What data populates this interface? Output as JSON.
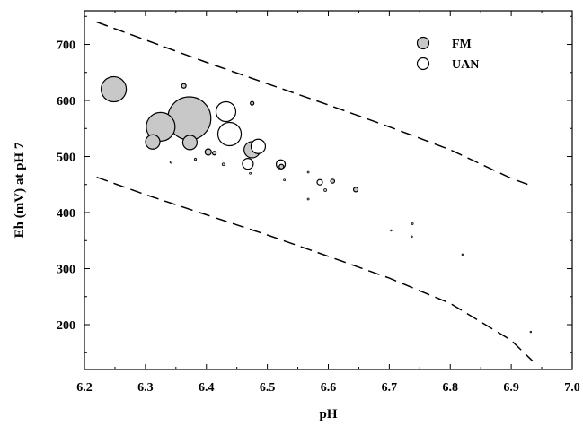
{
  "chart_data": {
    "type": "scatter",
    "title": "",
    "xlabel": "pH",
    "ylabel": "Eh (mV) at pH 7",
    "xlim": [
      6.2,
      7.0
    ],
    "ylim": [
      120,
      760
    ],
    "x_ticks": [
      6.2,
      6.3,
      6.4,
      6.5,
      6.6,
      6.7,
      6.8,
      6.9,
      7.0
    ],
    "x_tick_labels": [
      "6.2",
      "6.3",
      "6.4",
      "6.5",
      "6.6",
      "6.7",
      "6.8",
      "6.9",
      "7.0"
    ],
    "y_ticks": [
      200,
      300,
      400,
      500,
      600,
      700
    ],
    "y_tick_labels": [
      "200",
      "300",
      "400",
      "500",
      "600",
      "700"
    ],
    "grid": false,
    "legend_position": "top-right",
    "colors": {
      "FM_fill": "#c8c8c8",
      "UAN_fill": "#ffffff",
      "stroke": "#000000"
    },
    "series": [
      {
        "name": "FM",
        "marker": "filled-circle",
        "points": [
          {
            "x": 6.248,
            "y": 620,
            "size": 14
          },
          {
            "x": 6.325,
            "y": 553,
            "size": 16
          },
          {
            "x": 6.312,
            "y": 526,
            "size": 8
          },
          {
            "x": 6.372,
            "y": 568,
            "size": 24
          },
          {
            "x": 6.373,
            "y": 525,
            "size": 8
          },
          {
            "x": 6.363,
            "y": 626,
            "size": 2.5
          },
          {
            "x": 6.403,
            "y": 508,
            "size": 3.5
          },
          {
            "x": 6.413,
            "y": 506,
            "size": 2
          },
          {
            "x": 6.475,
            "y": 512,
            "size": 9
          },
          {
            "x": 6.475,
            "y": 595,
            "size": 2
          },
          {
            "x": 6.428,
            "y": 486,
            "size": 1.5
          },
          {
            "x": 6.342,
            "y": 490,
            "size": 1.2
          },
          {
            "x": 6.382,
            "y": 495,
            "size": 1.2
          },
          {
            "x": 6.523,
            "y": 482,
            "size": 2.5
          },
          {
            "x": 6.595,
            "y": 440,
            "size": 1.5
          },
          {
            "x": 6.607,
            "y": 456,
            "size": 2.2
          },
          {
            "x": 6.645,
            "y": 441,
            "size": 2.5
          },
          {
            "x": 6.738,
            "y": 380,
            "size": 1
          }
        ]
      },
      {
        "name": "UAN",
        "marker": "open-circle",
        "points": [
          {
            "x": 6.432,
            "y": 580,
            "size": 11
          },
          {
            "x": 6.438,
            "y": 540,
            "size": 13
          },
          {
            "x": 6.485,
            "y": 518,
            "size": 8
          },
          {
            "x": 6.468,
            "y": 487,
            "size": 6
          },
          {
            "x": 6.522,
            "y": 486,
            "size": 5
          },
          {
            "x": 6.586,
            "y": 454,
            "size": 3
          },
          {
            "x": 6.567,
            "y": 472,
            "size": 1
          },
          {
            "x": 6.567,
            "y": 424,
            "size": 1
          },
          {
            "x": 6.528,
            "y": 458,
            "size": 1
          },
          {
            "x": 6.472,
            "y": 470,
            "size": 1
          },
          {
            "x": 6.703,
            "y": 368,
            "size": 0.8
          },
          {
            "x": 6.737,
            "y": 357,
            "size": 0.8
          },
          {
            "x": 6.82,
            "y": 325,
            "size": 0.8
          },
          {
            "x": 6.932,
            "y": 187,
            "size": 0.8
          }
        ]
      }
    ],
    "bounds": [
      {
        "name": "upper-bound",
        "style": "dashed",
        "points": [
          [
            6.22,
            740
          ],
          [
            6.3,
            708
          ],
          [
            6.4,
            668
          ],
          [
            6.5,
            630
          ],
          [
            6.6,
            592
          ],
          [
            6.7,
            553
          ],
          [
            6.8,
            512
          ],
          [
            6.9,
            461
          ],
          [
            6.935,
            447
          ]
        ]
      },
      {
        "name": "lower-bound",
        "style": "dashed",
        "points": [
          [
            6.22,
            463
          ],
          [
            6.3,
            432
          ],
          [
            6.4,
            396
          ],
          [
            6.5,
            360
          ],
          [
            6.6,
            322
          ],
          [
            6.7,
            283
          ],
          [
            6.8,
            238
          ],
          [
            6.9,
            172
          ],
          [
            6.935,
            135
          ]
        ]
      }
    ]
  }
}
